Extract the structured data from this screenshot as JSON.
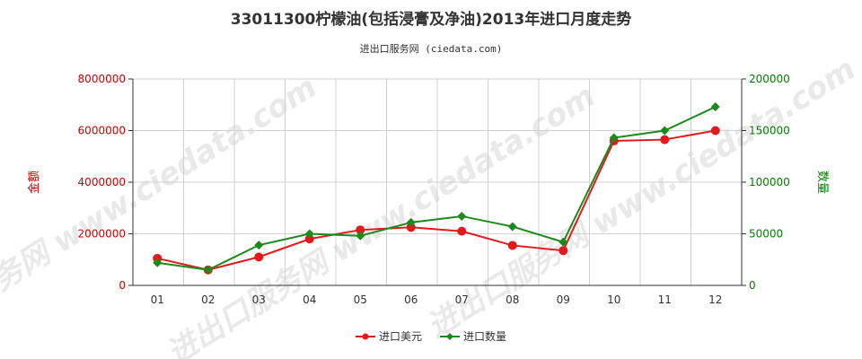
{
  "chart_data": {
    "type": "line",
    "title": "33011300柠檬油(包括浸膏及净油)2013年进口月度走势",
    "subtitle": "进出口服务网 (ciedata.com)",
    "watermark": "进出口服务网 www.ciedata.com",
    "categories": [
      "01",
      "02",
      "03",
      "04",
      "05",
      "06",
      "07",
      "08",
      "09",
      "10",
      "11",
      "12"
    ],
    "y_left": {
      "label": "金额",
      "ticks": [
        "0",
        "2000000",
        "4000000",
        "6000000",
        "8000000"
      ],
      "range": [
        0,
        8000000
      ],
      "color": "#cc0000"
    },
    "y_right": {
      "label": "数量",
      "ticks": [
        "0",
        "50000",
        "100000",
        "150000",
        "200000"
      ],
      "range": [
        0,
        200000
      ],
      "color": "#008000"
    },
    "series": [
      {
        "name": "进口美元",
        "axis": "left",
        "color": "#e31a1c",
        "marker": "circle",
        "values": [
          1050000,
          600000,
          1100000,
          1800000,
          2150000,
          2250000,
          2100000,
          1550000,
          1350000,
          5600000,
          5650000,
          6000000
        ]
      },
      {
        "name": "进口数量",
        "axis": "right",
        "color": "#1a8a1a",
        "marker": "diamond",
        "values": [
          22000,
          15000,
          39000,
          50000,
          48000,
          61000,
          67000,
          57000,
          42000,
          143000,
          150000,
          173000
        ]
      }
    ],
    "grid": true,
    "legend_position": "bottom-center"
  }
}
